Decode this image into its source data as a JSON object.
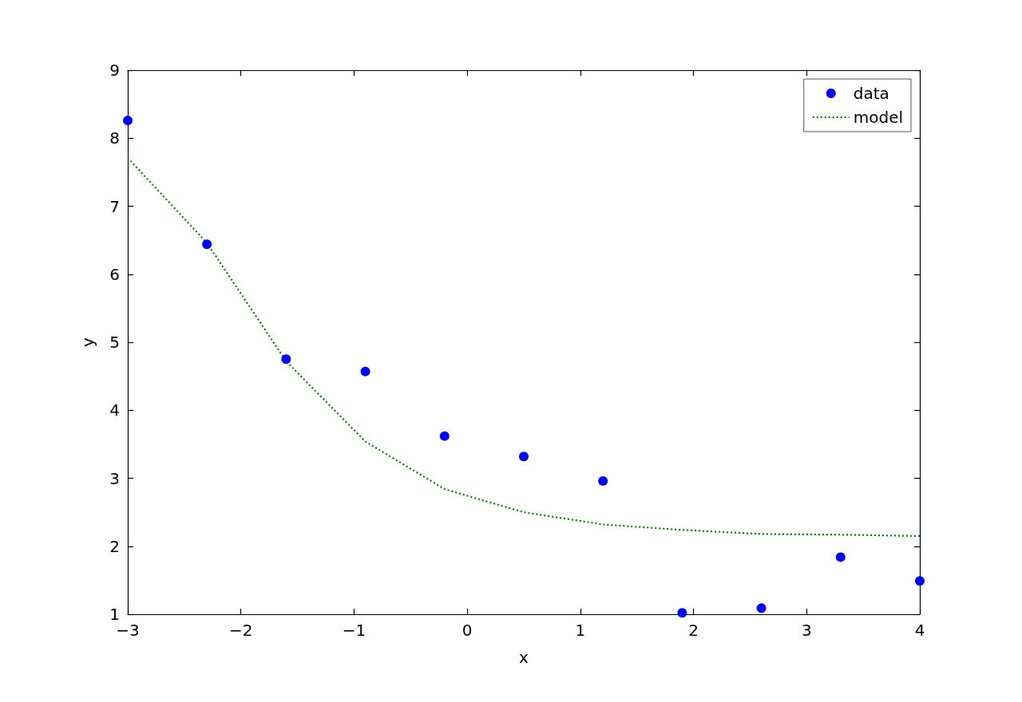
{
  "chart_data": {
    "type": "scatter",
    "xlabel": "x",
    "ylabel": "y",
    "xlim": [
      -3,
      4
    ],
    "ylim": [
      1,
      9
    ],
    "xticks": [
      {
        "value": -3,
        "label": "−3"
      },
      {
        "value": -2,
        "label": "−2"
      },
      {
        "value": -1,
        "label": "−1"
      },
      0,
      1,
      2,
      3,
      4
    ],
    "yticks": [
      1,
      2,
      3,
      4,
      5,
      6,
      7,
      8,
      9
    ],
    "legend": "top right",
    "series": [
      {
        "name": "data",
        "color": "#0000ff",
        "marker": "circle",
        "x": [
          -3,
          -2.3,
          -1.6,
          -0.9,
          -0.2,
          0.5,
          1.2,
          1.9,
          2.6,
          3.3,
          4
        ],
        "values": [
          8.26,
          6.44,
          4.75,
          4.57,
          3.62,
          3.32,
          2.96,
          1.02,
          1.09,
          1.84,
          1.49
        ]
      },
      {
        "name": "model",
        "type": "line",
        "color": "#008000",
        "marker": "none",
        "line_style": "dotted",
        "x": [
          -3,
          -2.3,
          -1.6,
          -0.9,
          -0.2,
          0.5,
          1.2,
          1.9,
          2.6,
          3.3,
          4
        ],
        "values": [
          7.71,
          6.46,
          4.72,
          3.54,
          2.84,
          2.5,
          2.32,
          2.24,
          2.18,
          2.17,
          2.15
        ]
      }
    ]
  }
}
